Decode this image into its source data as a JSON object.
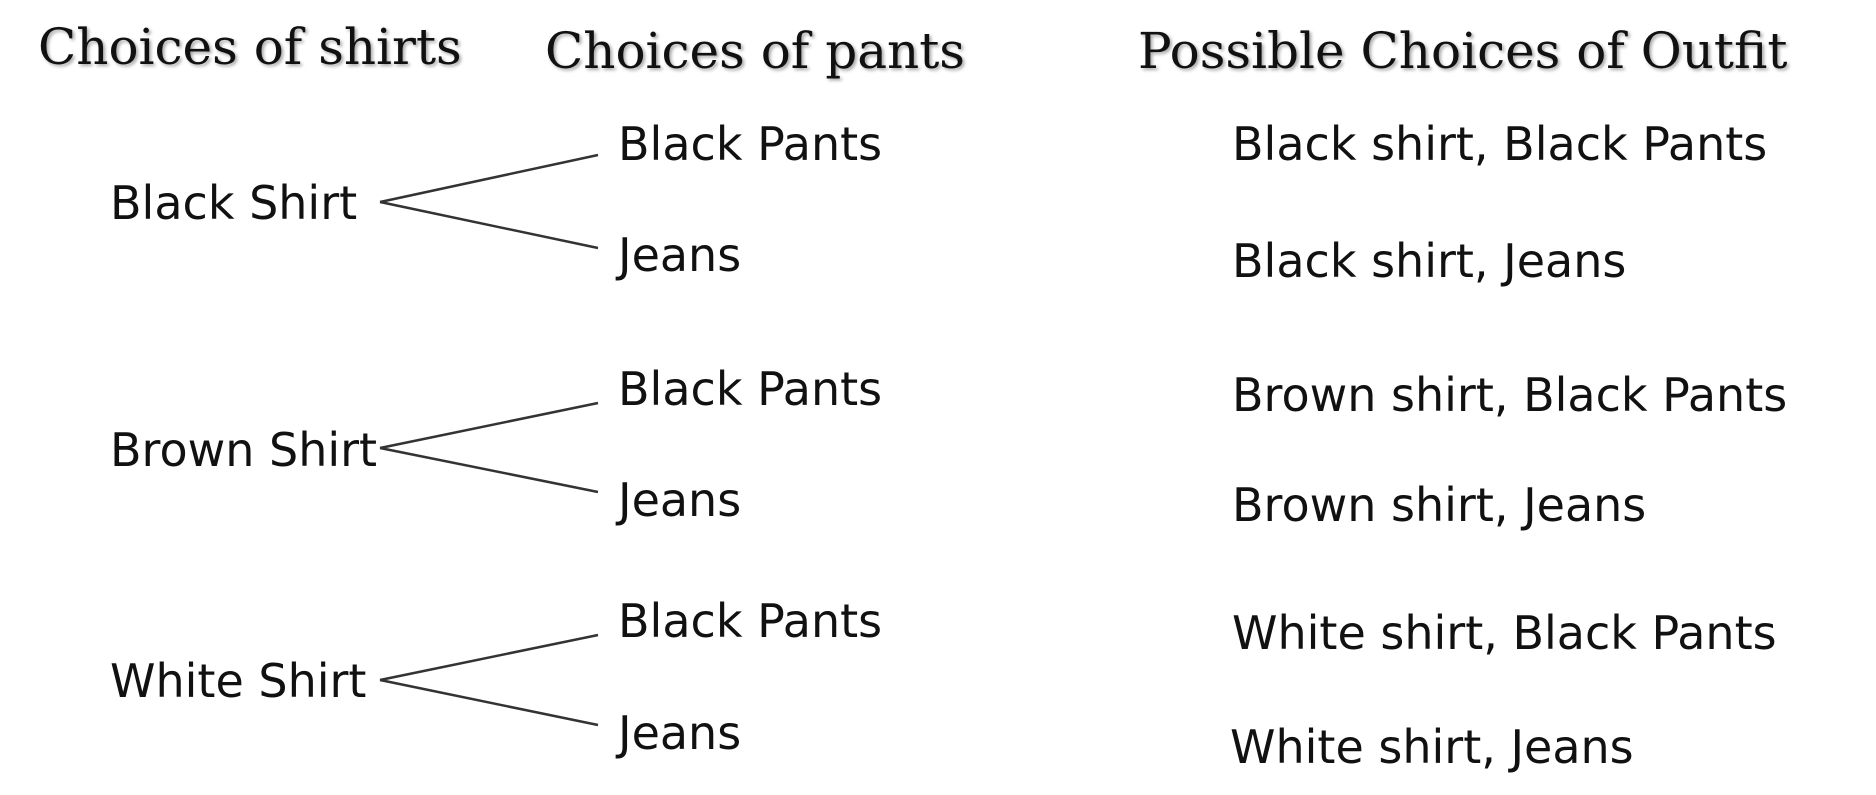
{
  "headers": {
    "shirts": "Choices of shirts",
    "pants": "Choices of pants",
    "outfits": "Possible Choices of Outfit"
  },
  "shirts": [
    "Black Shirt",
    "Brown Shirt",
    "White Shirt"
  ],
  "pants": [
    [
      "Black Pants",
      "Jeans"
    ],
    [
      "Black Pants",
      "Jeans"
    ],
    [
      "Black Pants",
      "Jeans"
    ]
  ],
  "outfits": [
    "Black shirt, Black Pants",
    "Black shirt, Jeans",
    "Brown shirt, Black Pants",
    "Brown shirt, Jeans",
    "White shirt, Black Pants",
    "White shirt, Jeans"
  ],
  "colors": {
    "text": "#111111",
    "line": "#333333",
    "background": "#ffffff"
  }
}
